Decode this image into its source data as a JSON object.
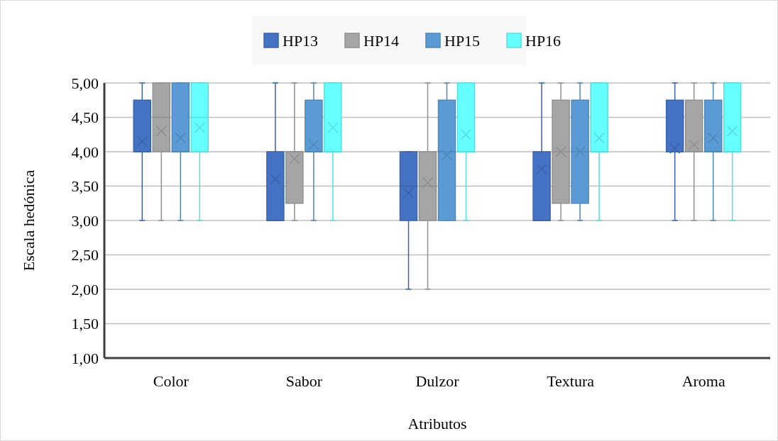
{
  "chart_data": {
    "type": "box",
    "xlabel": "Atributos",
    "ylabel": "Escala hedónica",
    "categories": [
      "Color",
      "Sabor",
      "Dulzor",
      "Textura",
      "Aroma"
    ],
    "ylim": [
      1,
      5
    ],
    "yticks": [
      {
        "value": 1,
        "label": "1,00"
      },
      {
        "value": 1.5,
        "label": "1,50"
      },
      {
        "value": 2,
        "label": "2,00"
      },
      {
        "value": 2.5,
        "label": "2,50"
      },
      {
        "value": 3,
        "label": "3,00"
      },
      {
        "value": 3.5,
        "label": "3,50"
      },
      {
        "value": 4,
        "label": "4,00"
      },
      {
        "value": 4.5,
        "label": "4,50"
      },
      {
        "value": 5,
        "label": "5,00"
      }
    ],
    "grid": "y",
    "legend": "top",
    "series": [
      {
        "name": "HP13",
        "color": "#4472c4",
        "boxes": [
          {
            "low": 3,
            "q1": 4,
            "median": 4,
            "q3": 4.75,
            "high": 5,
            "mean": 4.15
          },
          {
            "low": 3,
            "q1": 3,
            "median": 3,
            "q3": 4,
            "high": 5,
            "mean": 3.6
          },
          {
            "low": 2,
            "q1": 3,
            "median": 3.5,
            "q3": 4,
            "high": 4,
            "mean": 3.4
          },
          {
            "low": 3,
            "q1": 3,
            "median": 3,
            "q3": 4,
            "high": 5,
            "mean": 3.75
          },
          {
            "low": 3,
            "q1": 4,
            "median": 4,
            "q3": 4.75,
            "high": 5,
            "mean": 4.05
          }
        ]
      },
      {
        "name": "HP14",
        "color": "#a5a5a5",
        "boxes": [
          {
            "low": 3,
            "q1": 4,
            "median": 4.5,
            "q3": 5,
            "high": 5,
            "mean": 4.3
          },
          {
            "low": 3,
            "q1": 3.25,
            "median": 4,
            "q3": 4,
            "high": 5,
            "mean": 3.9
          },
          {
            "low": 2,
            "q1": 3,
            "median": 3.5,
            "q3": 4,
            "high": 5,
            "mean": 3.55
          },
          {
            "low": 3,
            "q1": 3.25,
            "median": 4,
            "q3": 4.75,
            "high": 5,
            "mean": 4
          },
          {
            "low": 3,
            "q1": 4,
            "median": 4,
            "q3": 4.75,
            "high": 5,
            "mean": 4.1
          }
        ]
      },
      {
        "name": "HP15",
        "color": "#5b9bd5",
        "boxes": [
          {
            "low": 3,
            "q1": 4,
            "median": 4,
            "q3": 5,
            "high": 5,
            "mean": 4.2
          },
          {
            "low": 3,
            "q1": 4,
            "median": 4,
            "q3": 4.75,
            "high": 5,
            "mean": 4.1
          },
          {
            "low": 3,
            "q1": 3,
            "median": 4,
            "q3": 4.75,
            "high": 5,
            "mean": 3.95
          },
          {
            "low": 3,
            "q1": 3.25,
            "median": 4,
            "q3": 4.75,
            "high": 5,
            "mean": 4
          },
          {
            "low": 3,
            "q1": 4,
            "median": 4,
            "q3": 4.75,
            "high": 5,
            "mean": 4.2
          }
        ]
      },
      {
        "name": "HP16",
        "color": "#66ffff",
        "boxes": [
          {
            "low": 3,
            "q1": 4,
            "median": 4.5,
            "q3": 5,
            "high": 5,
            "mean": 4.35
          },
          {
            "low": 3,
            "q1": 4,
            "median": 4,
            "q3": 5,
            "high": 5,
            "mean": 4.35
          },
          {
            "low": 3,
            "q1": 4,
            "median": 4,
            "q3": 5,
            "high": 5,
            "mean": 4.25
          },
          {
            "low": 3,
            "q1": 4,
            "median": 4,
            "q3": 5,
            "high": 5,
            "mean": 4.2
          },
          {
            "low": 3,
            "q1": 4,
            "median": 4,
            "q3": 5,
            "high": 5,
            "mean": 4.3
          }
        ]
      }
    ]
  }
}
